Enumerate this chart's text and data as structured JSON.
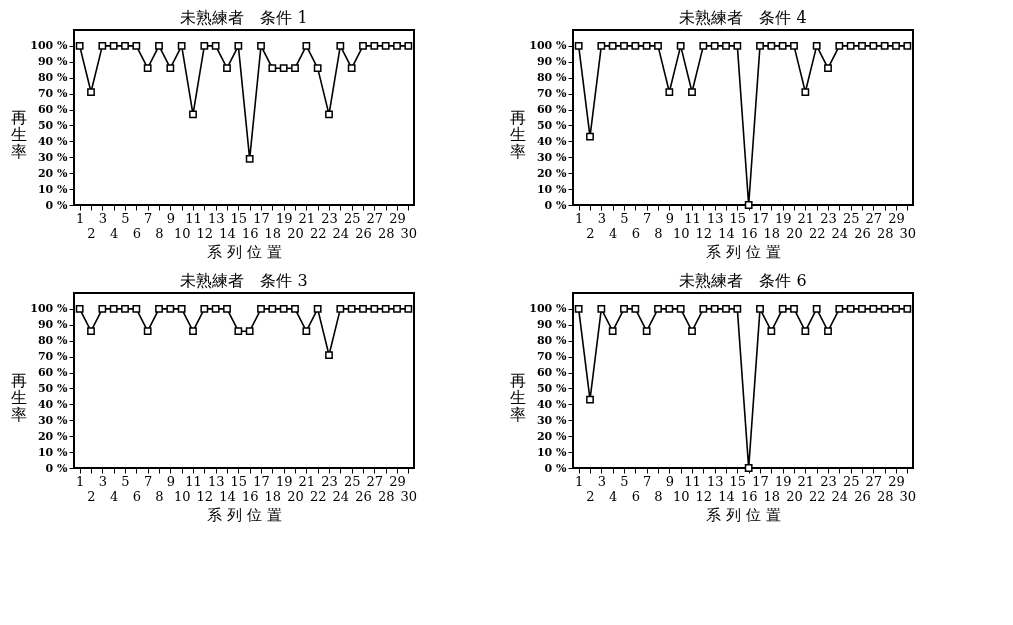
{
  "chart_data": [
    {
      "type": "line",
      "title": "未熟練者　条件 1",
      "xlabel": "系 列 位 置",
      "ylabel": "再生率",
      "marker": "square",
      "line_style": "solid",
      "grid": false,
      "categories": [
        "1",
        "2",
        "3",
        "4",
        "5",
        "6",
        "7",
        "8",
        "9",
        "10",
        "11",
        "12",
        "13",
        "14",
        "15",
        "16",
        "17",
        "18",
        "19",
        "20",
        "21",
        "22",
        "23",
        "24",
        "25",
        "26",
        "27",
        "28",
        "29",
        "30"
      ],
      "ylim": [
        0,
        110
      ],
      "yticks": [
        {
          "value": 0,
          "label": "0 %"
        },
        {
          "value": 10,
          "label": "10 %"
        },
        {
          "value": 20,
          "label": "20 %"
        },
        {
          "value": 30,
          "label": "30 %"
        },
        {
          "value": 40,
          "label": "40 %"
        },
        {
          "value": 50,
          "label": "50 %"
        },
        {
          "value": 60,
          "label": "60 %"
        },
        {
          "value": 70,
          "label": "70 %"
        },
        {
          "value": 80,
          "label": "80 %"
        },
        {
          "value": 90,
          "label": "90 %"
        },
        {
          "value": 100,
          "label": "100 %"
        }
      ],
      "series": [
        {
          "color": "#000000",
          "values": [
            100,
            71,
            100,
            100,
            100,
            100,
            86,
            100,
            86,
            100,
            57,
            100,
            100,
            86,
            100,
            29,
            100,
            86,
            86,
            86,
            100,
            86,
            57,
            100,
            86,
            100,
            100,
            100,
            100,
            100
          ]
        }
      ]
    },
    {
      "type": "line",
      "title": "未熟練者　条件 4",
      "xlabel": "系 列 位 置",
      "ylabel": "再生率",
      "marker": "square",
      "line_style": "solid",
      "grid": false,
      "categories": [
        "1",
        "2",
        "3",
        "4",
        "5",
        "6",
        "7",
        "8",
        "9",
        "10",
        "11",
        "12",
        "13",
        "14",
        "15",
        "16",
        "17",
        "18",
        "19",
        "20",
        "21",
        "22",
        "23",
        "24",
        "25",
        "26",
        "27",
        "28",
        "29",
        "30"
      ],
      "ylim": [
        0,
        110
      ],
      "yticks": [
        {
          "value": 0,
          "label": "0 %"
        },
        {
          "value": 10,
          "label": "10 %"
        },
        {
          "value": 20,
          "label": "20 %"
        },
        {
          "value": 30,
          "label": "30 %"
        },
        {
          "value": 40,
          "label": "40 %"
        },
        {
          "value": 50,
          "label": "50 %"
        },
        {
          "value": 60,
          "label": "60 %"
        },
        {
          "value": 70,
          "label": "70 %"
        },
        {
          "value": 80,
          "label": "80 %"
        },
        {
          "value": 90,
          "label": "90 %"
        },
        {
          "value": 100,
          "label": "100 %"
        }
      ],
      "series": [
        {
          "color": "#000000",
          "values": [
            100,
            43,
            100,
            100,
            100,
            100,
            100,
            100,
            71,
            100,
            71,
            100,
            100,
            100,
            100,
            0,
            100,
            100,
            100,
            100,
            71,
            100,
            86,
            100,
            100,
            100,
            100,
            100,
            100,
            100
          ]
        }
      ]
    },
    {
      "type": "line",
      "title": "未熟練者　条件 3",
      "xlabel": "系 列 位 置",
      "ylabel": "再生率",
      "marker": "square",
      "line_style": "solid",
      "grid": false,
      "categories": [
        "1",
        "2",
        "3",
        "4",
        "5",
        "6",
        "7",
        "8",
        "9",
        "10",
        "11",
        "12",
        "13",
        "14",
        "15",
        "16",
        "17",
        "18",
        "19",
        "20",
        "21",
        "22",
        "23",
        "24",
        "25",
        "26",
        "27",
        "28",
        "29",
        "30"
      ],
      "ylim": [
        0,
        110
      ],
      "yticks": [
        {
          "value": 0,
          "label": "0 %"
        },
        {
          "value": 10,
          "label": "10 %"
        },
        {
          "value": 20,
          "label": "20 %"
        },
        {
          "value": 30,
          "label": "30 %"
        },
        {
          "value": 40,
          "label": "40 %"
        },
        {
          "value": 50,
          "label": "50 %"
        },
        {
          "value": 60,
          "label": "60 %"
        },
        {
          "value": 70,
          "label": "70 %"
        },
        {
          "value": 80,
          "label": "80 %"
        },
        {
          "value": 90,
          "label": "90 %"
        },
        {
          "value": 100,
          "label": "100 %"
        }
      ],
      "series": [
        {
          "color": "#000000",
          "values": [
            100,
            86,
            100,
            100,
            100,
            100,
            86,
            100,
            100,
            100,
            86,
            100,
            100,
            100,
            86,
            86,
            100,
            100,
            100,
            100,
            86,
            100,
            71,
            100,
            100,
            100,
            100,
            100,
            100,
            100
          ]
        }
      ]
    },
    {
      "type": "line",
      "title": "未熟練者　条件 6",
      "xlabel": "系 列 位 置",
      "ylabel": "再生率",
      "marker": "square",
      "line_style": "solid",
      "grid": false,
      "categories": [
        "1",
        "2",
        "3",
        "4",
        "5",
        "6",
        "7",
        "8",
        "9",
        "10",
        "11",
        "12",
        "13",
        "14",
        "15",
        "16",
        "17",
        "18",
        "19",
        "20",
        "21",
        "22",
        "23",
        "24",
        "25",
        "26",
        "27",
        "28",
        "29",
        "30"
      ],
      "ylim": [
        0,
        110
      ],
      "yticks": [
        {
          "value": 0,
          "label": "0 %"
        },
        {
          "value": 10,
          "label": "10 %"
        },
        {
          "value": 20,
          "label": "20 %"
        },
        {
          "value": 30,
          "label": "30 %"
        },
        {
          "value": 40,
          "label": "40 %"
        },
        {
          "value": 50,
          "label": "50 %"
        },
        {
          "value": 60,
          "label": "60 %"
        },
        {
          "value": 70,
          "label": "70 %"
        },
        {
          "value": 80,
          "label": "80 %"
        },
        {
          "value": 90,
          "label": "90 %"
        },
        {
          "value": 100,
          "label": "100 %"
        }
      ],
      "series": [
        {
          "color": "#000000",
          "values": [
            100,
            43,
            100,
            86,
            100,
            100,
            86,
            100,
            100,
            100,
            86,
            100,
            100,
            100,
            100,
            0,
            100,
            86,
            100,
            100,
            86,
            100,
            86,
            100,
            100,
            100,
            100,
            100,
            100,
            100
          ]
        }
      ]
    }
  ]
}
